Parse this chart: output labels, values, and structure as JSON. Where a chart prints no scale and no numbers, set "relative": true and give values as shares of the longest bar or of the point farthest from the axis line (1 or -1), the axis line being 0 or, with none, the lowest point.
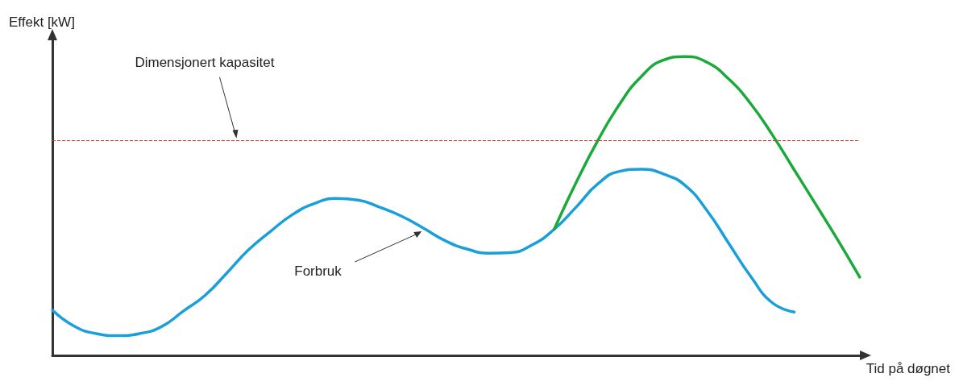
{
  "chart_data": {
    "type": "line",
    "relative": true,
    "xlabel": "Tid på døgnet",
    "ylabel": "Effekt [kW]",
    "categories": [
      null,
      null,
      null,
      null,
      null,
      null,
      null,
      null,
      null,
      null,
      null,
      null,
      null,
      null,
      null,
      null,
      null,
      null,
      null,
      null,
      null,
      null,
      null,
      null,
      null,
      null,
      null,
      null,
      null,
      null,
      null,
      null,
      null,
      null,
      null,
      null,
      null,
      null
    ],
    "series": [
      {
        "name": "Forbruk",
        "color": "#1a9fd9",
        "values": [
          0.152,
          0.098,
          0.073,
          0.066,
          0.073,
          0.096,
          0.148,
          0.201,
          0.276,
          0.354,
          0.415,
          0.471,
          0.508,
          0.525,
          0.52,
          0.496,
          0.466,
          0.426,
          0.384,
          0.356,
          0.342,
          0.344,
          0.37,
          0.422,
          0.496,
          0.574,
          0.616,
          0.623,
          0.607,
          0.569,
          0.485,
          0.375,
          0.265,
          0.176,
          0.145,
          null,
          null,
          null
        ]
      },
      {
        "color": "#1aaa3c",
        "values": [
          null,
          null,
          null,
          null,
          null,
          null,
          null,
          null,
          null,
          null,
          null,
          null,
          null,
          null,
          null,
          null,
          null,
          null,
          null,
          null,
          null,
          null,
          null,
          0.422,
          0.578,
          0.719,
          0.841,
          0.934,
          0.988,
          1.0,
          0.981,
          0.925,
          0.843,
          0.738,
          0.621,
          0.504,
          0.386,
          0.262
        ]
      }
    ],
    "ref_lines": [
      {
        "axis": "y",
        "value": 0.721,
        "label": "Dimensjonert kapasitet",
        "color": "#e03030",
        "line_style": "dashed"
      }
    ],
    "grid": false,
    "legend": false,
    "marker": "none",
    "line_style": "solid"
  }
}
